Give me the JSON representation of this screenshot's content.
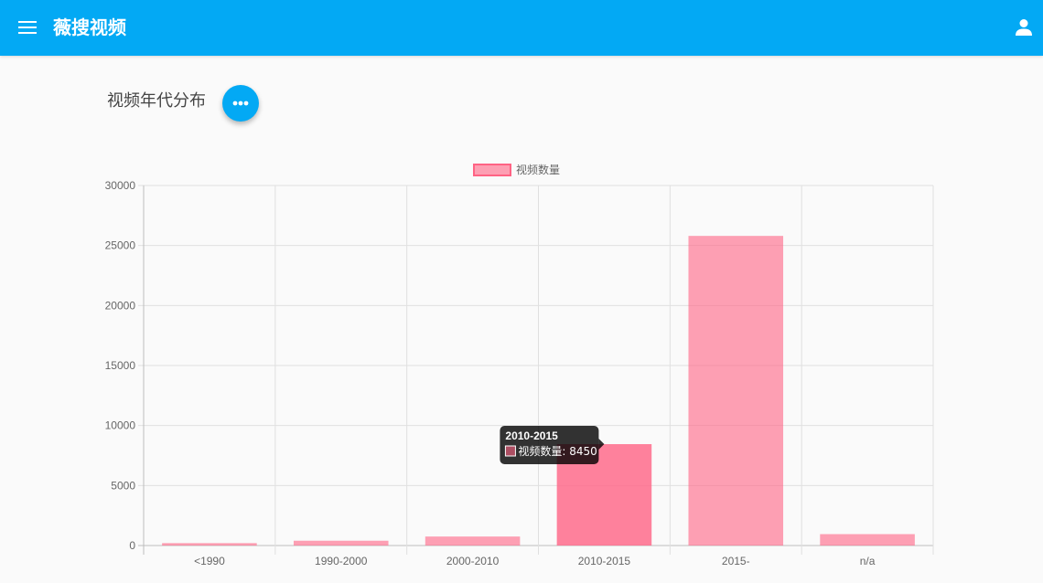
{
  "app": {
    "title": "薇搜视频",
    "menu_icon": "menu-icon",
    "user_icon": "account-icon",
    "brand_color": "#03a9f4"
  },
  "page": {
    "heading": "视频年代分布",
    "more_icon": "more-horiz-icon"
  },
  "chart_data": {
    "type": "bar",
    "categories": [
      "<1990",
      "1990-2000",
      "2000-2010",
      "2010-2015",
      "2015-",
      "n/a"
    ],
    "series": [
      {
        "name": "视频数量",
        "values": [
          200,
          400,
          750,
          8450,
          25800,
          950
        ]
      }
    ],
    "ylim": [
      0,
      30000
    ],
    "yticks": [
      "30000",
      "25000",
      "20000",
      "15000",
      "10000",
      "5000",
      "0"
    ],
    "grid": true,
    "legend": "top-center",
    "bar_color": "#ff6384",
    "tooltip": {
      "category_index": 3,
      "title": "2010-2015",
      "label": "视频数量: 8450"
    }
  }
}
